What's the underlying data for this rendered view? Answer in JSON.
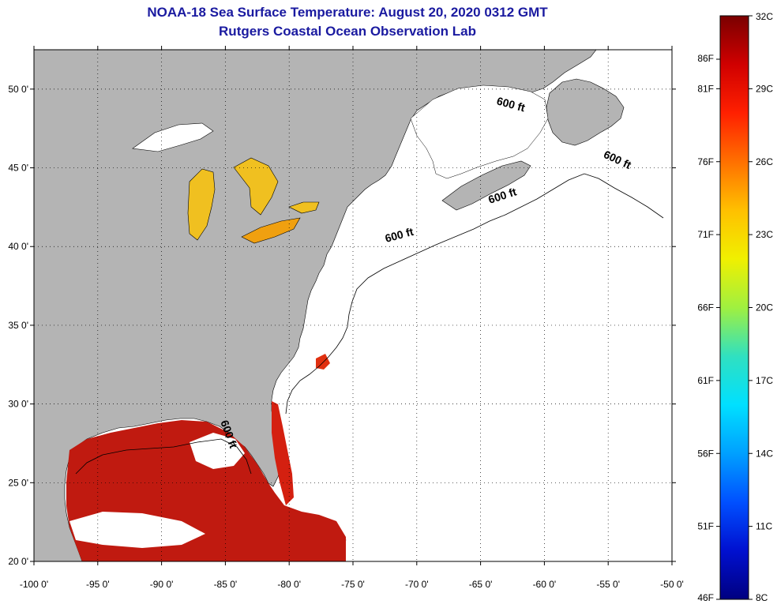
{
  "title": {
    "line1": "NOAA-18 Sea Surface Temperature:  August 20, 2020 0312 GMT",
    "line2": "Rutgers Coastal Ocean Observation Lab"
  },
  "map": {
    "lon_range": [
      -100,
      -50
    ],
    "lat_range": [
      20,
      52.5
    ],
    "lon_ticks": [
      {
        "value": -100,
        "label": "-100 0'"
      },
      {
        "value": -95,
        "label": "-95 0'"
      },
      {
        "value": -90,
        "label": "-90 0'"
      },
      {
        "value": -85,
        "label": "-85 0'"
      },
      {
        "value": -80,
        "label": "-80 0'"
      },
      {
        "value": -75,
        "label": "-75 0'"
      },
      {
        "value": -70,
        "label": "-70 0'"
      },
      {
        "value": -65,
        "label": "-65 0'"
      },
      {
        "value": -60,
        "label": "-60 0'"
      },
      {
        "value": -55,
        "label": "-55 0'"
      },
      {
        "value": -50,
        "label": "-50 0'"
      }
    ],
    "lat_ticks": [
      {
        "value": 50,
        "label": "50 0'"
      },
      {
        "value": 45,
        "label": "45 0'"
      },
      {
        "value": 40,
        "label": "40 0'"
      },
      {
        "value": 35,
        "label": "35 0'"
      },
      {
        "value": 30,
        "label": "30 0'"
      },
      {
        "value": 25,
        "label": "25 0'"
      },
      {
        "value": 20,
        "label": "20 0'"
      }
    ],
    "isobath_labels": [
      {
        "text": "600 ft",
        "lon": -62.7,
        "lat": 48.8,
        "angle": 15
      },
      {
        "text": "600 ft",
        "lon": -54.4,
        "lat": 45.3,
        "angle": 25
      },
      {
        "text": "600 ft",
        "lon": -63.2,
        "lat": 43.0,
        "angle": -18
      },
      {
        "text": "600 ft",
        "lon": -71.3,
        "lat": 40.5,
        "angle": -15
      },
      {
        "text": "600 ft",
        "lon": -85.0,
        "lat": 28.0,
        "angle": 70
      }
    ],
    "colors": {
      "land": "#b4b4b4",
      "water_no_data": "#ffffff",
      "gulf_sst": "#c01a10",
      "lake_sst": "#f0a010"
    }
  },
  "colorbar": {
    "c_labels": [
      "32C",
      "29C",
      "26C",
      "23C",
      "20C",
      "17C",
      "14C",
      "11C",
      "8C"
    ],
    "f_labels": [
      "86F",
      "81F",
      "76F",
      "71F",
      "66F",
      "61F",
      "56F",
      "51F",
      "46F"
    ],
    "stops": [
      "#7a0000",
      "#d00000",
      "#ff2000",
      "#ff7000",
      "#ffc000",
      "#f0f000",
      "#a0f040",
      "#30e0c0",
      "#00e0ff",
      "#00a0ff",
      "#0050ff",
      "#0010d0",
      "#000080"
    ]
  }
}
